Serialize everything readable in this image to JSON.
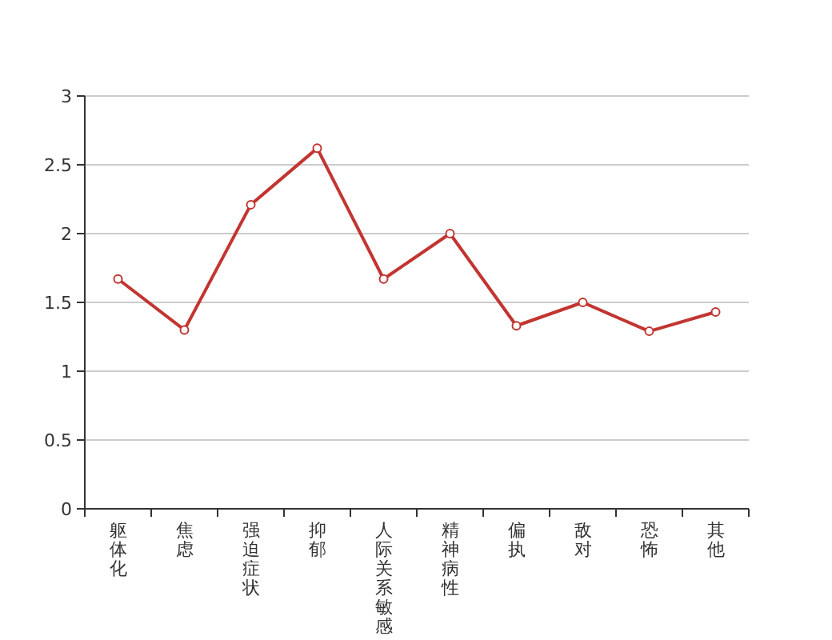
{
  "chart_data": {
    "type": "line",
    "categories": [
      "躯体化",
      "焦虑",
      "强迫症状",
      "抑郁",
      "人际关系敏感",
      "精神病性",
      "偏执",
      "敌对",
      "恐怖",
      "其他"
    ],
    "series": [
      {
        "color": "#c23531",
        "values": [
          1.67,
          1.3,
          2.21,
          2.62,
          1.67,
          2.0,
          1.33,
          1.5,
          1.29,
          1.43
        ]
      }
    ],
    "ylim": [
      0,
      3
    ],
    "yticks": [
      0,
      0.5,
      1,
      1.5,
      2,
      2.5,
      3
    ],
    "grid": "y",
    "marker": "circle",
    "line_style": "solid"
  }
}
